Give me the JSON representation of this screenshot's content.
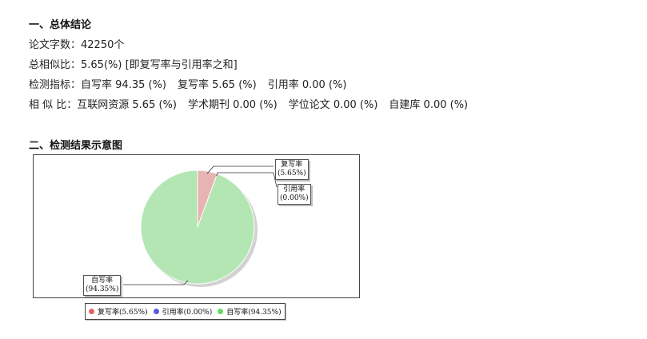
{
  "section1": {
    "heading": "一、总体结论",
    "word_count": "论文字数：42250个",
    "total_similarity": "总相似比：5.65(%) [即复写率与引用率之和]",
    "detection": {
      "label": "检测指标：",
      "original": "自写率 94.35 (%)",
      "copied": "复写率 5.65 (%)",
      "cited": "引用率 0.00 (%)"
    },
    "sources": {
      "label": "相 似 比：",
      "internet": "互联网资源 5.65 (%)",
      "journals": "学术期刊 0.00 (%)",
      "theses": "学位论文 0.00 (%)",
      "custom": "自建库 0.00 (%)"
    }
  },
  "section2": {
    "heading": "二、检测结果示意图"
  },
  "chart_data": {
    "type": "pie",
    "slices": [
      {
        "name": "复写率",
        "value": 5.65,
        "label": "(5.65%)",
        "legend": "复写率(5.65%)",
        "color": "#e8b3b3",
        "legend_color": "#e46464"
      },
      {
        "name": "引用率",
        "value": 0.0,
        "label": "(0.00%)",
        "legend": "引用率(0.00%)",
        "color": "#b3b3e8",
        "legend_color": "#5a5adc"
      },
      {
        "name": "自写率",
        "value": 94.35,
        "label": "(94.35%)",
        "legend": "自写率(94.35%)",
        "color": "#b3e6b3",
        "legend_color": "#5fdc5f"
      }
    ],
    "legend_position": "bottom"
  }
}
